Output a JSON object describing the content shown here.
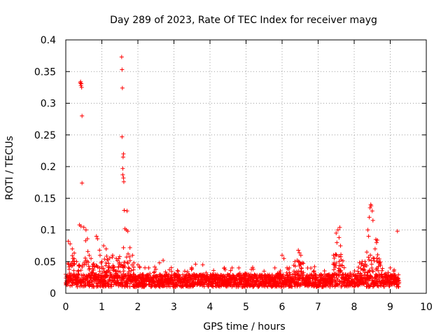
{
  "chart_data": {
    "type": "scatter",
    "title": "Day 289 of 2023, Rate Of TEC Index for receiver mayg",
    "xlabel": "GPS time / hours",
    "ylabel": "ROTI / TECUs",
    "xlim": [
      0,
      10
    ],
    "ylim": [
      0,
      0.4
    ],
    "x_ticks": [
      "0",
      "1",
      "2",
      "3",
      "4",
      "5",
      "6",
      "7",
      "8",
      "9",
      "10"
    ],
    "y_ticks": [
      "0",
      "0.05",
      "0.1",
      "0.15",
      "0.2",
      "0.25",
      "0.3",
      "0.35",
      "0.4"
    ],
    "grid": true,
    "marker": "+",
    "color": "#ff0000",
    "series": [
      {
        "name": "ROTI",
        "points": [
          [
            0.4,
            0.332
          ],
          [
            0.41,
            0.334
          ],
          [
            0.42,
            0.328
          ],
          [
            0.43,
            0.331
          ],
          [
            0.44,
            0.325
          ],
          [
            0.45,
            0.28
          ],
          [
            0.45,
            0.174
          ],
          [
            1.55,
            0.373
          ],
          [
            1.56,
            0.353
          ],
          [
            1.57,
            0.324
          ],
          [
            1.56,
            0.247
          ],
          [
            1.6,
            0.22
          ],
          [
            1.59,
            0.215
          ],
          [
            1.58,
            0.197
          ],
          [
            1.58,
            0.187
          ],
          [
            1.6,
            0.182
          ],
          [
            1.61,
            0.176
          ],
          [
            1.62,
            0.131
          ],
          [
            1.7,
            0.13
          ],
          [
            0.38,
            0.108
          ],
          [
            0.42,
            0.106
          ],
          [
            0.5,
            0.104
          ],
          [
            0.56,
            0.1
          ],
          [
            1.64,
            0.102
          ],
          [
            1.68,
            0.1
          ],
          [
            1.72,
            0.098
          ],
          [
            0.85,
            0.09
          ],
          [
            0.88,
            0.086
          ],
          [
            0.6,
            0.086
          ],
          [
            0.55,
            0.083
          ],
          [
            1.05,
            0.075
          ],
          [
            1.12,
            0.07
          ],
          [
            0.07,
            0.082
          ],
          [
            0.12,
            0.078
          ],
          [
            0.18,
            0.07
          ],
          [
            1.6,
            0.072
          ],
          [
            1.78,
            0.072
          ],
          [
            1.85,
            0.06
          ],
          [
            1.3,
            0.06
          ],
          [
            1.4,
            0.055
          ],
          [
            2.7,
            0.052
          ],
          [
            2.6,
            0.048
          ],
          [
            3.6,
            0.046
          ],
          [
            3.8,
            0.045
          ],
          [
            6.0,
            0.06
          ],
          [
            6.05,
            0.055
          ],
          [
            6.45,
            0.068
          ],
          [
            6.48,
            0.064
          ],
          [
            6.52,
            0.06
          ],
          [
            6.42,
            0.052
          ],
          [
            7.5,
            0.095
          ],
          [
            7.55,
            0.1
          ],
          [
            7.58,
            0.088
          ],
          [
            7.6,
            0.104
          ],
          [
            7.52,
            0.08
          ],
          [
            7.62,
            0.075
          ],
          [
            7.48,
            0.06
          ],
          [
            7.45,
            0.045
          ],
          [
            8.38,
            0.1
          ],
          [
            8.42,
            0.12
          ],
          [
            8.44,
            0.135
          ],
          [
            8.46,
            0.14
          ],
          [
            8.47,
            0.138
          ],
          [
            8.5,
            0.13
          ],
          [
            8.52,
            0.115
          ],
          [
            8.4,
            0.09
          ],
          [
            8.35,
            0.065
          ],
          [
            8.6,
            0.085
          ],
          [
            8.62,
            0.08
          ],
          [
            8.64,
            0.084
          ],
          [
            8.58,
            0.07
          ],
          [
            8.55,
            0.055
          ],
          [
            8.2,
            0.045
          ],
          [
            8.3,
            0.05
          ],
          [
            4.4,
            0.04
          ],
          [
            4.8,
            0.04
          ],
          [
            5.2,
            0.038
          ],
          [
            5.8,
            0.04
          ],
          [
            6.9,
            0.042
          ],
          [
            9.2,
            0.098
          ],
          [
            9.0,
            0.04
          ],
          [
            9.1,
            0.035
          ],
          [
            0.2,
            0.055
          ],
          [
            0.3,
            0.05
          ],
          [
            0.65,
            0.06
          ],
          [
            0.7,
            0.055
          ],
          [
            0.95,
            0.06
          ],
          [
            1.0,
            0.05
          ],
          [
            2.0,
            0.045
          ],
          [
            2.3,
            0.04
          ],
          [
            2.5,
            0.038
          ],
          [
            3.1,
            0.036
          ],
          [
            3.3,
            0.035
          ],
          [
            4.1,
            0.036
          ],
          [
            5.5,
            0.035
          ],
          [
            6.2,
            0.04
          ]
        ]
      }
    ]
  }
}
